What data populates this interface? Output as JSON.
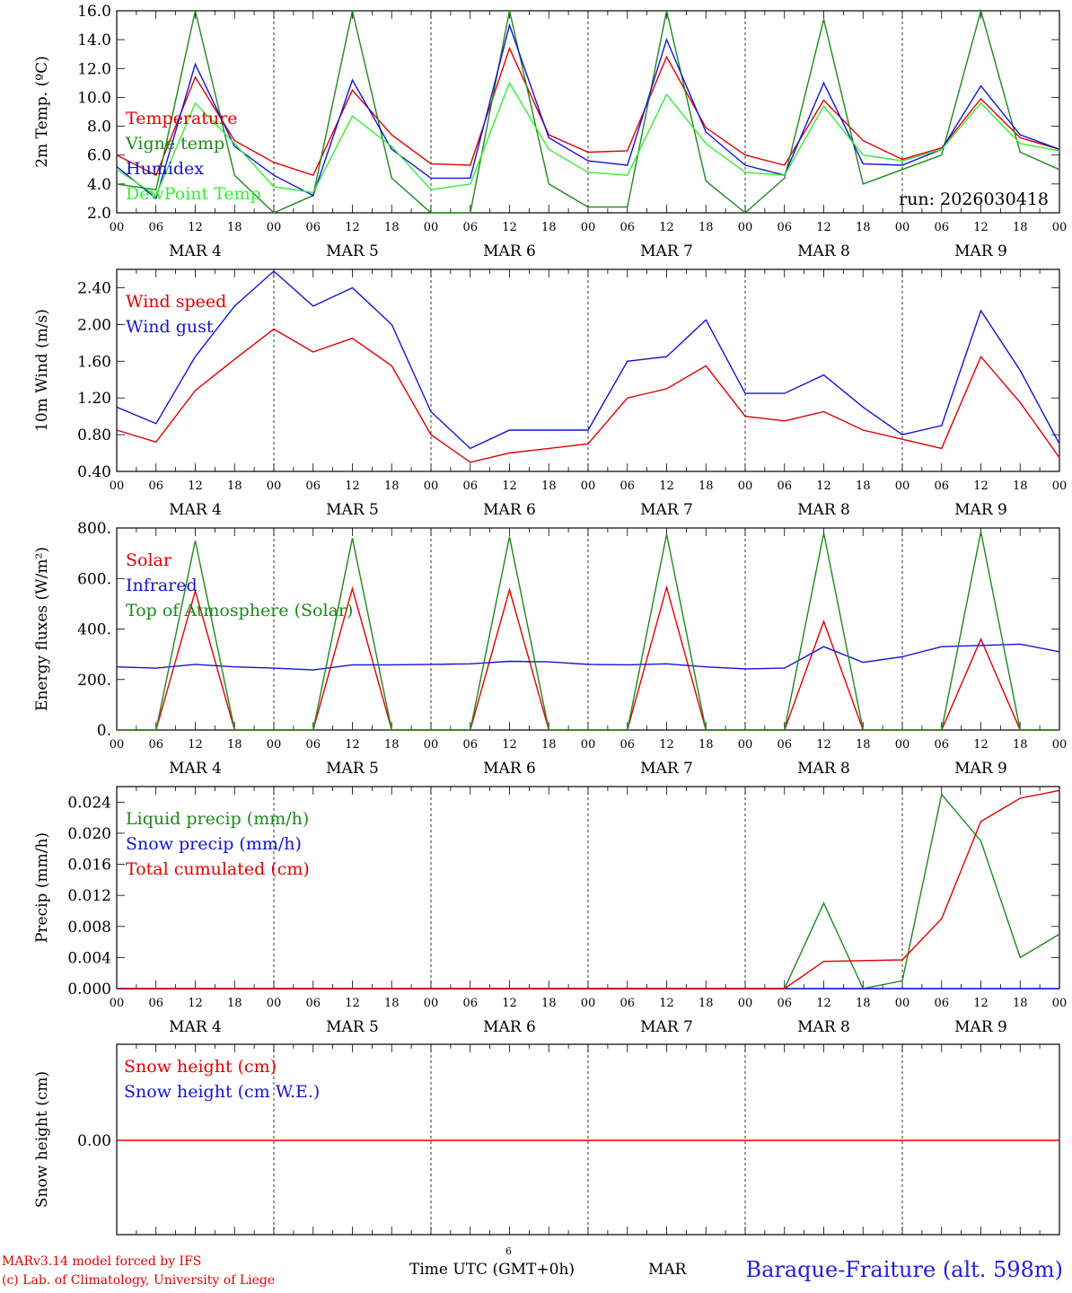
{
  "footer": {
    "model": "MARv3.14 model forced by IFS",
    "lab": "(c) Lab. of Climatology, University of Liege",
    "xlabel": "Time UTC (GMT+0h)",
    "month": "MAR",
    "tick": "6",
    "station": "Baraque-Fraiture (alt. 598m)"
  },
  "colors": {
    "red": "#e00000",
    "green": "#1a8a1a",
    "blue": "#1414d4",
    "light_green": "#33ee33",
    "axis": "#000000"
  },
  "chart_data": [
    {
      "type": "line",
      "ylabel": "2m Temp. (ºC)",
      "ylim": [
        2.0,
        16.0
      ],
      "yticks": [
        "2.0",
        "4.0",
        "6.0",
        "8.0",
        "10.0",
        "12.0",
        "14.0",
        "16.0"
      ],
      "xlabels_hours": [
        "00",
        "06",
        "12",
        "18",
        "00",
        "06",
        "12",
        "18",
        "00",
        "06",
        "12",
        "18",
        "00",
        "06",
        "12",
        "18",
        "00",
        "06",
        "12",
        "18",
        "00",
        "06",
        "12",
        "18",
        "00"
      ],
      "day_labels": [
        "MAR  4",
        "MAR  5",
        "MAR  6",
        "MAR  7",
        "MAR  8",
        "MAR  9"
      ],
      "annotation": "run: 2026030418",
      "x_hours": [
        0,
        6,
        12,
        18,
        24,
        30,
        36,
        42,
        48,
        54,
        60,
        66,
        72,
        78,
        84,
        90,
        96,
        102,
        108,
        114,
        120,
        126,
        132,
        138,
        144
      ],
      "series": [
        {
          "name": "Temperature",
          "color": "#e00000",
          "values": [
            6.0,
            4.6,
            11.4,
            7.0,
            5.5,
            4.6,
            10.5,
            7.4,
            5.4,
            5.3,
            13.4,
            7.4,
            6.2,
            6.3,
            12.8,
            7.9,
            6.0,
            5.3,
            9.8,
            7.0,
            5.7,
            6.5,
            9.9,
            7.2,
            6.4
          ]
        },
        {
          "name": "Vigne temp",
          "color": "#1a8a1a",
          "values": [
            4.0,
            3.6,
            16.0,
            4.6,
            2.0,
            3.2,
            16.0,
            4.4,
            2.0,
            2.0,
            16.0,
            4.0,
            2.4,
            2.4,
            16.0,
            4.2,
            2.0,
            4.4,
            15.4,
            4.0,
            5.0,
            6.0,
            16.0,
            6.2,
            5.0
          ]
        },
        {
          "name": "Humidex",
          "color": "#1414d4",
          "values": [
            5.2,
            3.0,
            12.3,
            6.6,
            4.6,
            3.2,
            11.2,
            6.4,
            4.4,
            4.4,
            15.0,
            7.2,
            5.6,
            5.3,
            14.0,
            7.6,
            5.3,
            4.6,
            11.0,
            5.4,
            5.3,
            6.4,
            10.8,
            7.4,
            6.4
          ]
        },
        {
          "name": "DewPoint Temp",
          "color": "#33ee33",
          "values": [
            5.0,
            3.2,
            9.6,
            6.8,
            3.8,
            3.4,
            8.7,
            6.6,
            3.6,
            4.0,
            11.0,
            6.4,
            4.8,
            4.6,
            10.2,
            6.8,
            4.8,
            4.6,
            9.4,
            6.0,
            5.6,
            6.4,
            9.6,
            6.8,
            6.3
          ]
        }
      ]
    },
    {
      "type": "line",
      "ylabel": "10m Wind (m/s)",
      "ylim": [
        0.4,
        2.6
      ],
      "yticks": [
        "0.40",
        "0.80",
        "1.20",
        "1.60",
        "2.00",
        "2.40"
      ],
      "xlabels_hours": [
        "00",
        "06",
        "12",
        "18",
        "00",
        "06",
        "12",
        "18",
        "00",
        "06",
        "12",
        "18",
        "00",
        "06",
        "12",
        "18",
        "00",
        "06",
        "12",
        "18",
        "00",
        "06",
        "12",
        "18",
        "00"
      ],
      "day_labels": [
        "MAR  4",
        "MAR  5",
        "MAR  6",
        "MAR  7",
        "MAR  8",
        "MAR  9"
      ],
      "x_hours": [
        0,
        6,
        12,
        18,
        24,
        30,
        36,
        42,
        48,
        54,
        60,
        66,
        72,
        78,
        84,
        90,
        96,
        102,
        108,
        114,
        120,
        126,
        132,
        138,
        144
      ],
      "series": [
        {
          "name": "Wind speed",
          "color": "#e00000",
          "values": [
            0.85,
            0.72,
            1.28,
            1.62,
            1.95,
            1.7,
            1.85,
            1.55,
            0.8,
            0.5,
            0.6,
            0.65,
            0.7,
            1.2,
            1.3,
            1.55,
            1.0,
            0.95,
            1.05,
            0.85,
            0.75,
            0.65,
            1.65,
            1.15,
            0.55
          ]
        },
        {
          "name": "Wind gust",
          "color": "#1414d4",
          "values": [
            1.1,
            0.92,
            1.65,
            2.2,
            2.58,
            2.2,
            2.4,
            2.0,
            1.05,
            0.65,
            0.85,
            0.85,
            0.85,
            1.6,
            1.65,
            2.05,
            1.25,
            1.25,
            1.45,
            1.1,
            0.8,
            0.9,
            2.15,
            1.5,
            0.7
          ]
        }
      ]
    },
    {
      "type": "line",
      "ylabel": "Energy fluxes (W/m²)",
      "ylim": [
        0,
        800
      ],
      "yticks": [
        "0.",
        "200.",
        "400.",
        "600.",
        "800."
      ],
      "xlabels_hours": [
        "00",
        "06",
        "12",
        "18",
        "00",
        "06",
        "12",
        "18",
        "00",
        "06",
        "12",
        "18",
        "00",
        "06",
        "12",
        "18",
        "00",
        "06",
        "12",
        "18",
        "00",
        "06",
        "12",
        "18",
        "00"
      ],
      "day_labels": [
        "MAR  4",
        "MAR  5",
        "MAR  6",
        "MAR  7",
        "MAR  8",
        "MAR  9"
      ],
      "x_hours": [
        0,
        6,
        12,
        18,
        24,
        30,
        36,
        42,
        48,
        54,
        60,
        66,
        72,
        78,
        84,
        90,
        96,
        102,
        108,
        114,
        120,
        126,
        132,
        138,
        144
      ],
      "series": [
        {
          "name": "Solar",
          "color": "#e00000",
          "values": [
            0,
            0,
            550,
            0,
            0,
            0,
            560,
            0,
            0,
            0,
            555,
            0,
            0,
            0,
            565,
            0,
            0,
            0,
            430,
            0,
            0,
            0,
            360,
            0,
            0
          ]
        },
        {
          "name": "Infrared",
          "color": "#1414d4",
          "values": [
            250,
            245,
            260,
            250,
            245,
            238,
            258,
            258,
            260,
            262,
            272,
            270,
            260,
            258,
            262,
            250,
            242,
            245,
            330,
            268,
            290,
            330,
            335,
            340,
            310
          ]
        },
        {
          "name": "Top of Atmosphere (Solar)",
          "color": "#1a8a1a",
          "values": [
            0,
            0,
            750,
            0,
            0,
            0,
            760,
            0,
            0,
            0,
            765,
            0,
            0,
            0,
            775,
            0,
            0,
            0,
            780,
            0,
            0,
            0,
            785,
            0,
            0
          ]
        }
      ]
    },
    {
      "type": "line",
      "ylabel": "Precip (mm/h)",
      "ylim": [
        0.0,
        0.026
      ],
      "yticks": [
        "0.000",
        "0.004",
        "0.008",
        "0.012",
        "0.016",
        "0.020",
        "0.024"
      ],
      "xlabels_hours": [
        "00",
        "06",
        "12",
        "18",
        "00",
        "06",
        "12",
        "18",
        "00",
        "06",
        "12",
        "18",
        "00",
        "06",
        "12",
        "18",
        "00",
        "06",
        "12",
        "18",
        "00",
        "06",
        "12",
        "18",
        "00"
      ],
      "day_labels": [
        "MAR  4",
        "MAR  5",
        "MAR  6",
        "MAR  7",
        "MAR  8",
        "MAR  9"
      ],
      "x_hours": [
        0,
        6,
        12,
        18,
        24,
        30,
        36,
        42,
        48,
        54,
        60,
        66,
        72,
        78,
        84,
        90,
        96,
        102,
        108,
        114,
        120,
        126,
        132,
        138,
        144
      ],
      "series": [
        {
          "name": "Liquid precip (mm/h)",
          "color": "#1a8a1a",
          "values": [
            0,
            0,
            0,
            0,
            0,
            0,
            0,
            0,
            0,
            0,
            0,
            0,
            0,
            0,
            0,
            0,
            0,
            0,
            0.011,
            0,
            0.001,
            0.025,
            0.019,
            0.004,
            0.007
          ]
        },
        {
          "name": "Snow precip (mm/h)",
          "color": "#1414d4",
          "values": [
            0,
            0,
            0,
            0,
            0,
            0,
            0,
            0,
            0,
            0,
            0,
            0,
            0,
            0,
            0,
            0,
            0,
            0,
            0,
            0,
            0,
            0,
            0,
            0,
            0
          ]
        },
        {
          "name": "Total cumulated (cm)",
          "color": "#e00000",
          "values": [
            0,
            0,
            0,
            0,
            0,
            0,
            0,
            0,
            0,
            0,
            0,
            0,
            0,
            0,
            0,
            0,
            0,
            0,
            0.0035,
            0.0036,
            0.0037,
            0.009,
            0.0215,
            0.0245,
            0.0255
          ]
        }
      ]
    },
    {
      "type": "line",
      "ylabel": "Snow height (cm)",
      "ylim": [
        -1.0,
        1.0
      ],
      "yticks": [
        "0.00"
      ],
      "xlabels_hours": [],
      "day_labels": [],
      "x_hours": [
        0,
        144
      ],
      "series": [
        {
          "name": "Snow height (cm)",
          "color": "#e00000",
          "values": [
            0,
            0
          ]
        },
        {
          "name": "Snow height (cm W.E.)",
          "color": "#1414d4",
          "values": []
        }
      ]
    }
  ]
}
